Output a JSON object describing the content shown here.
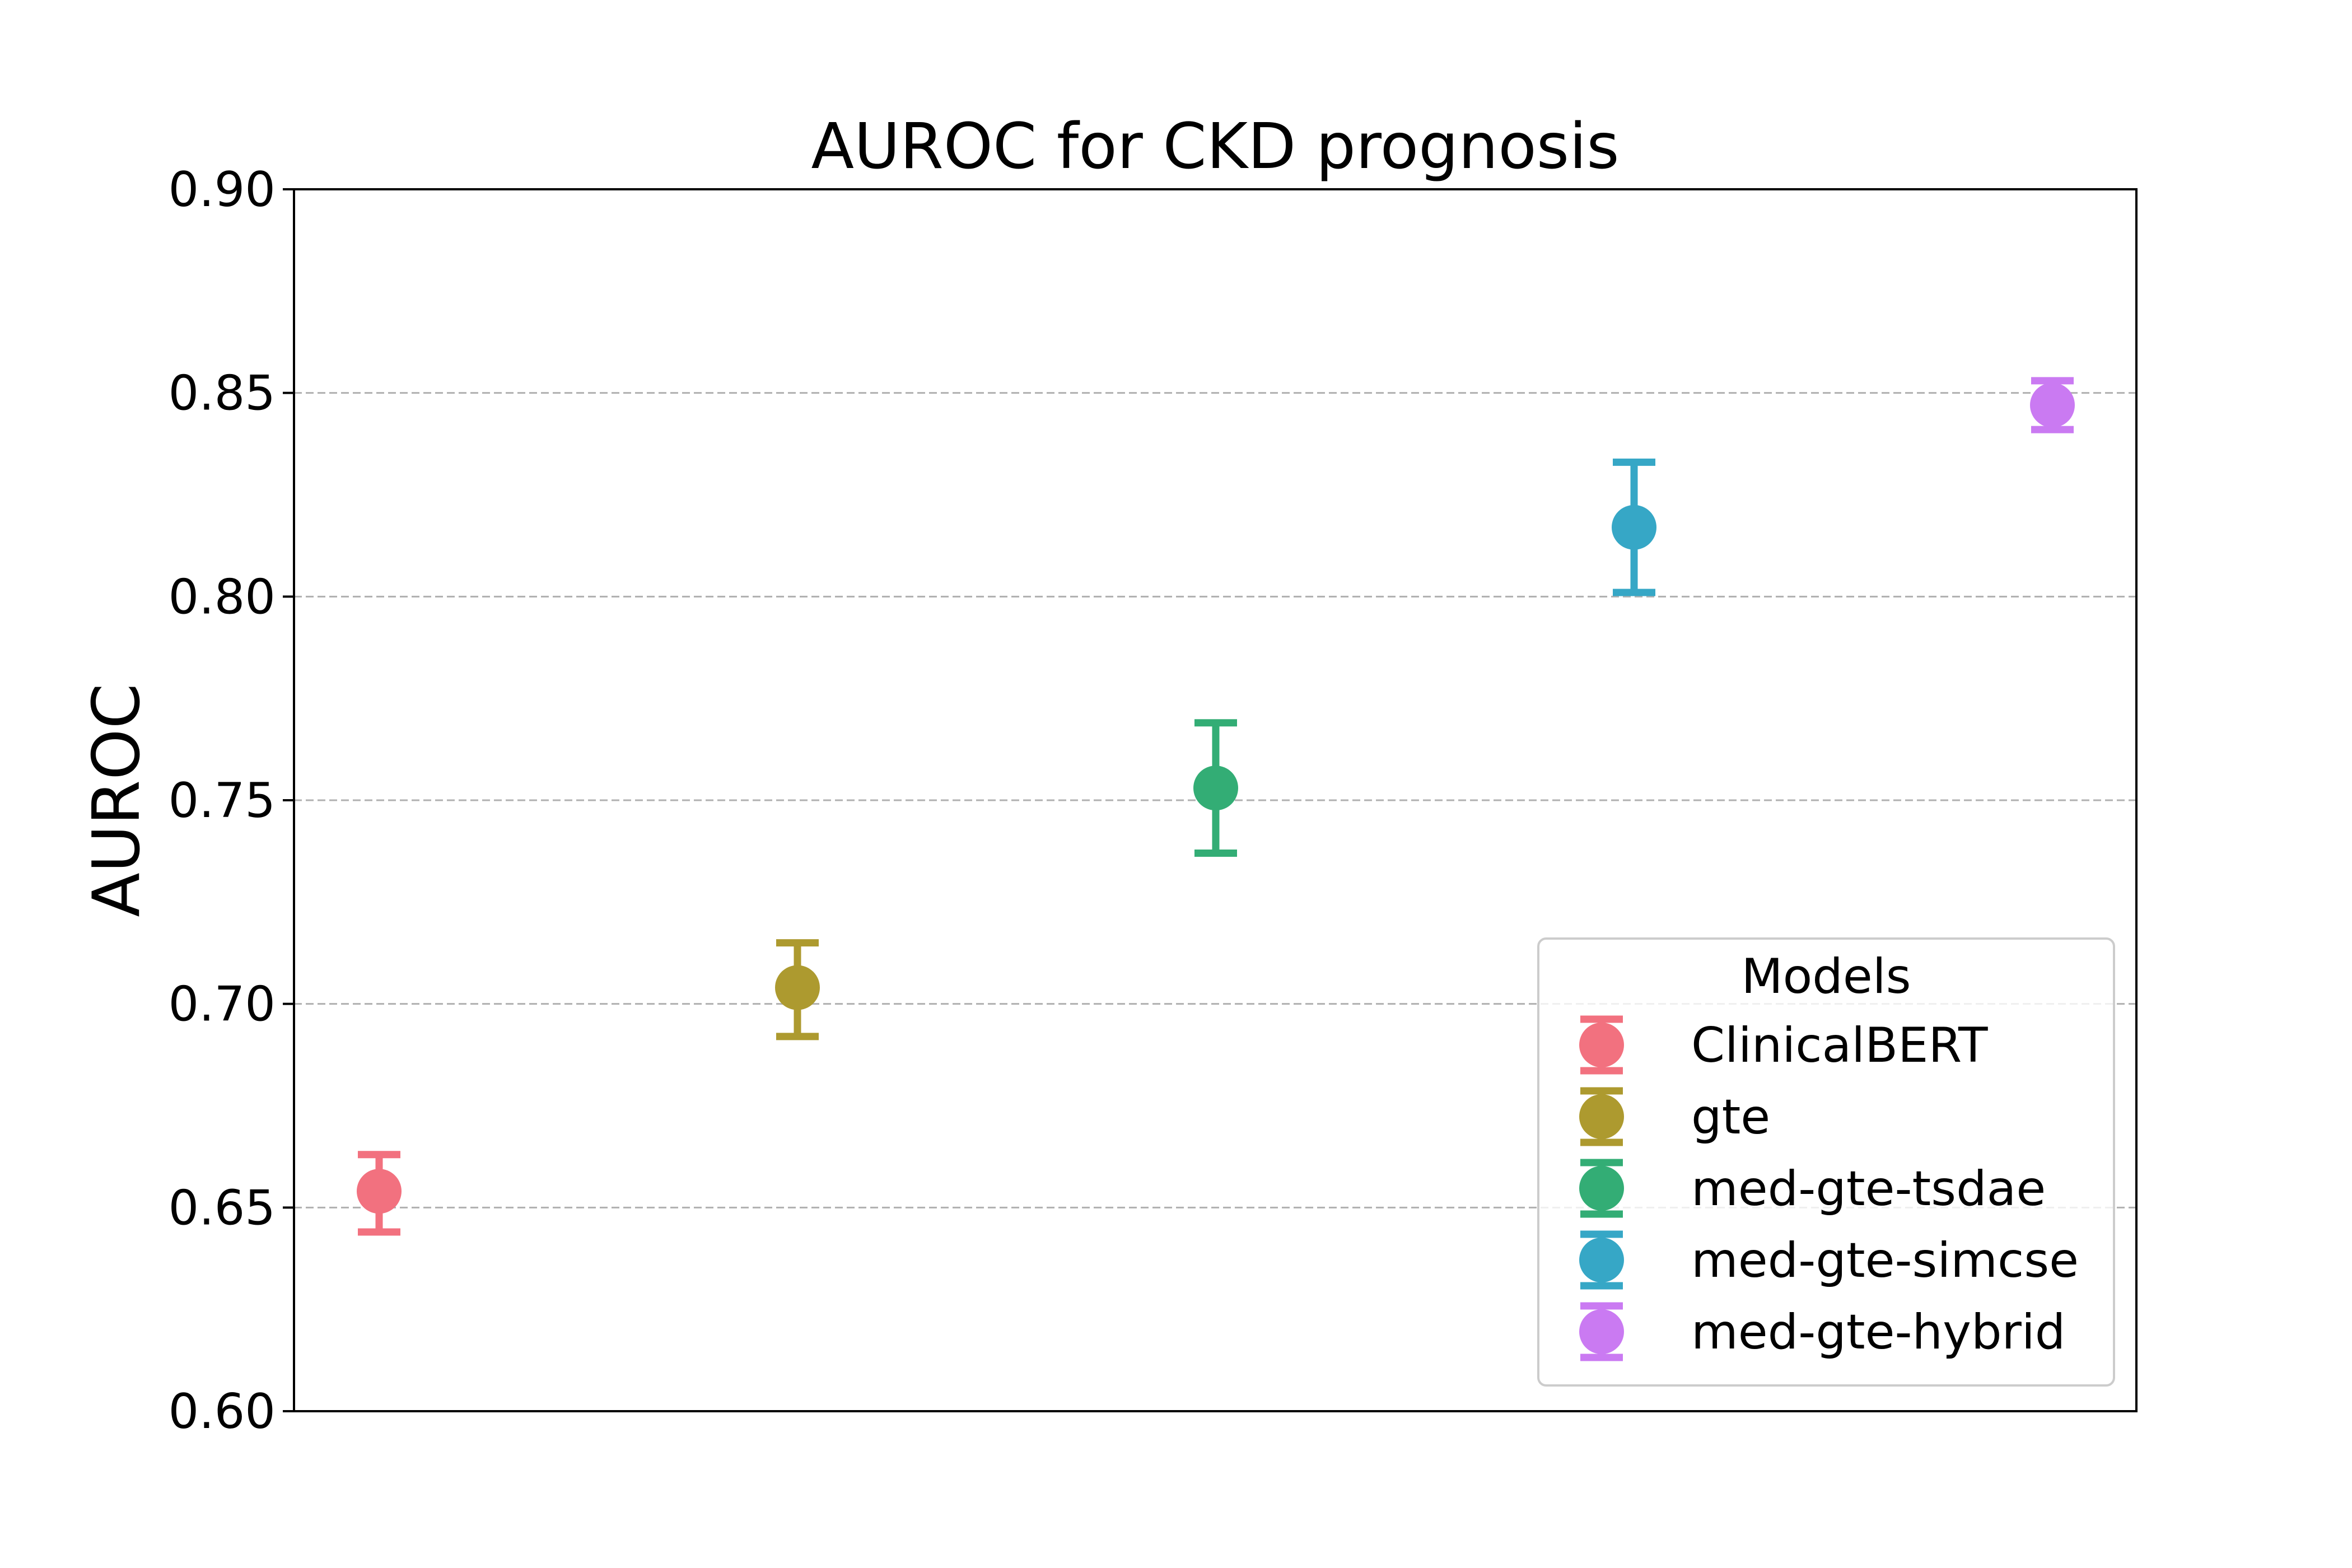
{
  "chart_data": {
    "type": "scatter",
    "title": "AUROC for CKD prognosis",
    "xlabel": "",
    "ylabel": "AUROC",
    "ylim": [
      0.6,
      0.9
    ],
    "yticks": [
      "0.60",
      "0.65",
      "0.70",
      "0.75",
      "0.80",
      "0.85",
      "0.90"
    ],
    "grid": "horizontal dashed",
    "legend": {
      "title": "Models",
      "placement": "lower-right"
    },
    "series": [
      {
        "name": "ClinicalBERT",
        "x": 0,
        "y": 0.654,
        "ci_low": 0.644,
        "ci_high": 0.663,
        "color": "#f2717f"
      },
      {
        "name": "gte",
        "x": 1,
        "y": 0.704,
        "ci_low": 0.692,
        "ci_high": 0.715,
        "color": "#ad9a2f"
      },
      {
        "name": "med-gte-tsdae",
        "x": 2,
        "y": 0.753,
        "ci_low": 0.737,
        "ci_high": 0.769,
        "color": "#33ad75"
      },
      {
        "name": "med-gte-simcse",
        "x": 3,
        "y": 0.817,
        "ci_low": 0.801,
        "ci_high": 0.833,
        "color": "#36a7c6"
      },
      {
        "name": "med-gte-hybrid",
        "x": 4,
        "y": 0.847,
        "ci_low": 0.841,
        "ci_high": 0.853,
        "color": "#ca7af2"
      }
    ]
  }
}
